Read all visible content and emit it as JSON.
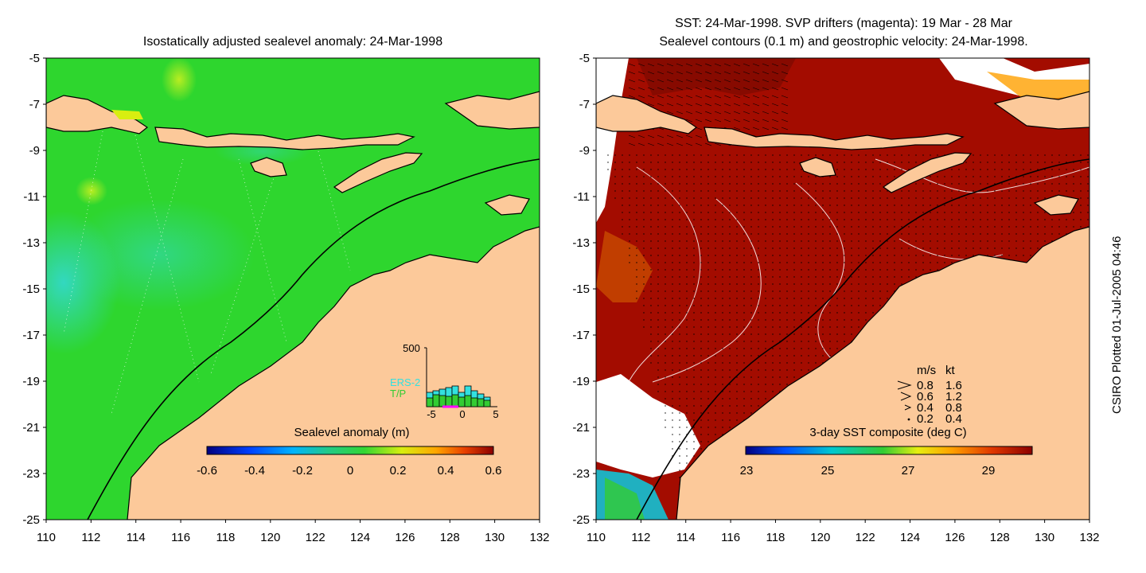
{
  "left_panel": {
    "title": "Isostatically adjusted sealevel anomaly: 24-Mar-1998",
    "colorbar": {
      "label": "Sealevel anomaly (m)",
      "ticks": [
        "-0.6",
        "-0.4",
        "-0.2",
        "0",
        "0.2",
        "0.4",
        "0.6"
      ]
    },
    "inset": {
      "ymax_label": "500",
      "x_ticks": [
        "-5",
        "0",
        "5"
      ],
      "legend": [
        {
          "label": "ERS-2",
          "color": "#33e0e0"
        },
        {
          "label": "T/P",
          "color": "#33cc33"
        }
      ]
    }
  },
  "right_panel": {
    "title_line1": "SST: 24-Mar-1998. SVP drifters (magenta): 19 Mar - 28 Mar",
    "title_line2": "Sealevel contours (0.1 m) and geostrophic velocity: 24-Mar-1998.",
    "colorbar": {
      "label": "3-day SST composite (deg C)",
      "ticks": [
        "23",
        "25",
        "27",
        "29"
      ]
    },
    "speed_legend": {
      "header_ms": "m/s",
      "header_kt": "kt",
      "rows": [
        {
          "ms": "0.8",
          "kt": "1.6"
        },
        {
          "ms": "0.6",
          "kt": "1.2"
        },
        {
          "ms": "0.4",
          "kt": "0.8"
        },
        {
          "ms": "0.2",
          "kt": "0.4"
        }
      ]
    }
  },
  "axes": {
    "lat_ticks": [
      "-5",
      "-7",
      "-9",
      "-11",
      "-13",
      "-15",
      "-17",
      "-19",
      "-21",
      "-23",
      "-25"
    ],
    "lon_ticks": [
      "110",
      "112",
      "114",
      "116",
      "118",
      "120",
      "122",
      "124",
      "126",
      "128",
      "130",
      "132"
    ]
  },
  "credit": "CSIRO Plotted 01-Jul-2005 04:46",
  "colors": {
    "land": "#fcc99a",
    "ocean_green": "#2ed62e",
    "sst_dark_red": "#a30c00",
    "cyan_anomaly": "#33d6c2"
  }
}
